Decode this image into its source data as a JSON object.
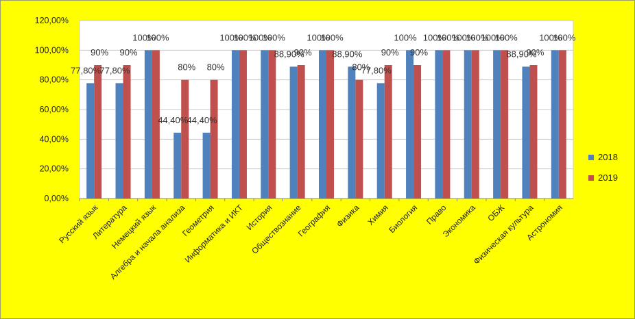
{
  "chart_data": {
    "type": "bar",
    "categories": [
      "Русский язык",
      "Литература",
      "Немецкий язык",
      "Алгебра и начала анализа",
      "Геометрия",
      "Информатика и ИКТ",
      "История",
      "Обществознание",
      "География",
      "Физика",
      "Химия",
      "Биология",
      "Право",
      "Экономика",
      "ОБЖ",
      "Физическая культура",
      "Астрономия"
    ],
    "series": [
      {
        "name": "2018",
        "color": "#4f81bd",
        "values": [
          77.8,
          77.8,
          100,
          44.4,
          44.4,
          100,
          100,
          88.9,
          100,
          88.9,
          77.8,
          100,
          100,
          100,
          100,
          88.9,
          100
        ],
        "labels": [
          "77,80%",
          "77,80%",
          "100%",
          "44,40%",
          "44,40%",
          "100%",
          "100%",
          "88,90%",
          "100%",
          "88,90%",
          "77,80%",
          "100%",
          "100%",
          "100%",
          "100%",
          "88,90%",
          "100%"
        ]
      },
      {
        "name": "2019",
        "color": "#c0504d",
        "values": [
          90,
          90,
          100,
          80,
          80,
          100,
          100,
          90,
          100,
          80,
          90,
          90,
          100,
          100,
          100,
          90,
          100
        ],
        "labels": [
          "90%",
          "90%",
          "100%",
          "80%",
          "80%",
          "100%",
          "100%",
          "90%",
          "100%",
          "80%",
          "90%",
          "90%",
          "100%",
          "100%",
          "100%",
          "90%",
          "100%"
        ]
      }
    ],
    "y_ticks": [
      "0,00%",
      "20,00%",
      "40,00%",
      "60,00%",
      "80,00%",
      "100,00%",
      "120,00%"
    ],
    "ylim": [
      0,
      120
    ],
    "grid": true,
    "legend_position": "right",
    "background": "#ffff00",
    "plot_background": "#ffffff",
    "title": "",
    "xlabel": "",
    "ylabel": ""
  }
}
